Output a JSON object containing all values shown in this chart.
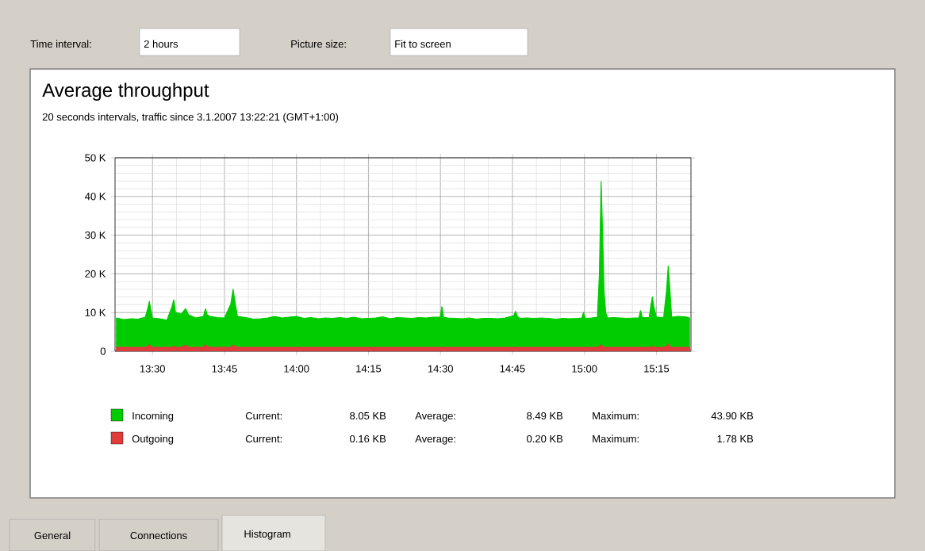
{
  "chart_data": {
    "type": "area",
    "title": "Average throughput",
    "subtitle": "20 seconds intervals, traffic since 3.1.2007 13:22:21 (GMT+1:00)",
    "annotations": [
      "Time interval:",
      "2 hours",
      "Picture size:",
      "Fit to screen",
      "Current:",
      "8.05 KB",
      "Average:",
      "8.49 KB",
      "Maximum:",
      "43.90 KB",
      "Current:",
      "0.16 KB",
      "Average:",
      "0.20 KB",
      "Maximum:",
      "1.78 KB",
      "General",
      "Connections",
      "Histogram"
    ],
    "x": [
      13.375,
      13.4,
      13.425,
      13.45,
      13.475,
      13.483,
      13.489,
      13.495,
      13.5,
      13.525,
      13.55,
      13.568,
      13.574,
      13.58,
      13.6,
      13.615,
      13.625,
      13.65,
      13.677,
      13.684,
      13.69,
      13.7,
      13.725,
      13.75,
      13.772,
      13.78,
      13.786,
      13.795,
      13.825,
      13.85,
      13.875,
      13.9,
      13.925,
      13.95,
      13.975,
      14.0,
      14.025,
      14.05,
      14.075,
      14.1,
      14.125,
      14.15,
      14.175,
      14.2,
      14.225,
      14.25,
      14.275,
      14.3,
      14.325,
      14.35,
      14.375,
      14.4,
      14.425,
      14.45,
      14.475,
      14.499,
      14.505,
      14.511,
      14.525,
      14.55,
      14.575,
      14.6,
      14.625,
      14.65,
      14.675,
      14.7,
      14.725,
      14.755,
      14.761,
      14.767,
      14.775,
      14.8,
      14.825,
      14.85,
      14.875,
      14.9,
      14.925,
      14.95,
      14.975,
      14.991,
      14.997,
      15.003,
      15.025,
      15.045,
      15.052,
      15.058,
      15.063,
      15.068,
      15.074,
      15.08,
      15.1,
      15.125,
      15.15,
      15.175,
      15.189,
      15.195,
      15.201,
      15.225,
      15.231,
      15.236,
      15.241,
      15.25,
      15.275,
      15.285,
      15.291,
      15.297,
      15.303,
      15.325,
      15.35,
      15.365
    ],
    "series": [
      {
        "name": "Incoming",
        "color": "#00cc00",
        "values": [
          8.6,
          8.2,
          8.4,
          8.3,
          8.8,
          10.8,
          12.9,
          10.5,
          8.6,
          8.4,
          8.0,
          11.6,
          13.3,
          10.0,
          9.6,
          11.0,
          9.4,
          8.6,
          9.0,
          11.0,
          9.4,
          9.0,
          8.7,
          8.6,
          12.2,
          16.0,
          13.0,
          9.0,
          8.7,
          8.3,
          8.4,
          8.6,
          9.0,
          8.6,
          8.8,
          9.0,
          8.5,
          8.7,
          8.4,
          8.6,
          8.5,
          8.7,
          8.5,
          8.8,
          8.4,
          8.5,
          8.6,
          8.9,
          8.4,
          8.7,
          8.6,
          8.5,
          8.7,
          8.6,
          8.8,
          8.8,
          11.5,
          8.8,
          8.6,
          8.5,
          8.4,
          8.6,
          8.3,
          8.5,
          8.5,
          8.4,
          8.6,
          9.2,
          10.3,
          9.0,
          8.5,
          8.6,
          8.5,
          8.6,
          8.5,
          8.3,
          8.5,
          8.4,
          8.5,
          8.6,
          10.0,
          8.5,
          8.6,
          8.8,
          20.0,
          43.9,
          31.0,
          15.5,
          10.0,
          8.6,
          8.7,
          8.6,
          8.5,
          8.6,
          8.6,
          10.5,
          8.7,
          8.7,
          12.0,
          14.0,
          11.5,
          8.8,
          8.7,
          15.5,
          22.0,
          15.5,
          8.8,
          9.0,
          8.9,
          8.6
        ]
      },
      {
        "name": "Outgoing",
        "color": "#e03c3c",
        "values": [
          1,
          1,
          1,
          1,
          1,
          1.2,
          1.7,
          1.2,
          1,
          1,
          1,
          1,
          1.3,
          1,
          1,
          1.6,
          1,
          1,
          1,
          1.7,
          1.2,
          1,
          1,
          1,
          1,
          1.6,
          1.2,
          1,
          1,
          1,
          1,
          1,
          1,
          1,
          1,
          1,
          1,
          1,
          1,
          1,
          1,
          1,
          1,
          1,
          1,
          1,
          1,
          1,
          1,
          1,
          1,
          1,
          1,
          1,
          1,
          1,
          1,
          1,
          1,
          1,
          1,
          1,
          1,
          1,
          1,
          1,
          1,
          1,
          1,
          1,
          1,
          1,
          1,
          1,
          1,
          1,
          1,
          1,
          1,
          1,
          1,
          1,
          1,
          1,
          1.2,
          1.7,
          1.2,
          1,
          1,
          1,
          1,
          1,
          1,
          1,
          1,
          1,
          1,
          1,
          1,
          1.3,
          1,
          1,
          1,
          1.2,
          1.8,
          1.2,
          1,
          1,
          1,
          1
        ]
      }
    ],
    "xlim": [
      13.37,
      15.37
    ],
    "xticks": [
      {
        "value": 13.5,
        "label": "13:30"
      },
      {
        "value": 13.75,
        "label": "13:45"
      },
      {
        "value": 14.0,
        "label": "14:00"
      },
      {
        "value": 14.25,
        "label": "14:15"
      },
      {
        "value": 14.5,
        "label": "14:30"
      },
      {
        "value": 14.75,
        "label": "14:45"
      },
      {
        "value": 15.0,
        "label": "15:00"
      },
      {
        "value": 15.25,
        "label": "15:15"
      }
    ],
    "ylim": [
      0,
      50
    ],
    "yticks": [
      0,
      {
        "value": 10,
        "label": "10 K"
      },
      {
        "value": 20,
        "label": "20 K"
      },
      {
        "value": 30,
        "label": "30 K"
      },
      {
        "value": 40,
        "label": "40 K"
      },
      {
        "value": 50,
        "label": "50 K"
      }
    ],
    "grid": true,
    "legend": "bottom"
  }
}
